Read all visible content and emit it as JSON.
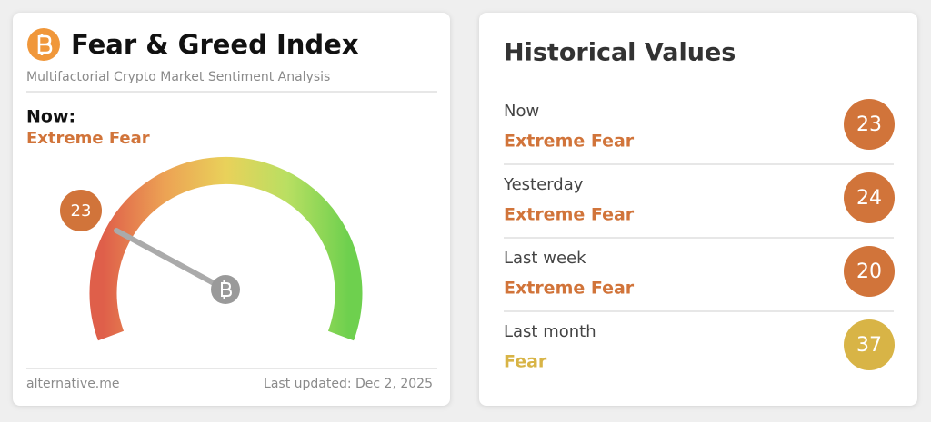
{
  "fear_greed": {
    "title": "Fear & Greed Index",
    "subtitle": "Multifactorial Crypto Market Sentiment Analysis",
    "now_label": "Now:",
    "classification": "Extreme Fear",
    "value": 23,
    "source": "alternative.me",
    "last_updated": "Last updated: Dec 2, 2025"
  },
  "historical": {
    "title": "Historical Values",
    "rows": [
      {
        "label": "Now",
        "classification": "Extreme Fear",
        "value": 23
      },
      {
        "label": "Yesterday",
        "classification": "Extreme Fear",
        "value": 24
      },
      {
        "label": "Last week",
        "classification": "Extreme Fear",
        "value": 20
      },
      {
        "label": "Last month",
        "classification": "Fear",
        "value": 37
      }
    ]
  }
}
